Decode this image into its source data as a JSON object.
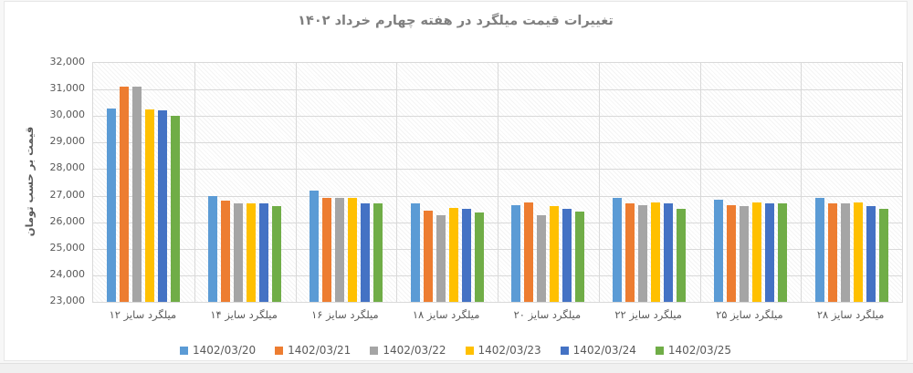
{
  "chart_data": {
    "type": "bar",
    "title": "تغییرات قیمت میلگرد در هفته چهارم خرداد ۱۴۰۲",
    "ylabel": "قیمت بر حسب تومان",
    "xlabel": "",
    "ylim": [
      23000,
      32000
    ],
    "ytick_step": 1000,
    "grid": true,
    "plot_background": "diagonal-hatch",
    "legend_position": "bottom",
    "categories": [
      "میلگرد سایز ۱۲",
      "میلگرد سایز ۱۴",
      "میلگرد سایز ۱۶",
      "میلگرد سایز ۱۸",
      "میلگرد سایز ۲۰",
      "میلگرد سایز ۲۲",
      "میلگرد سایز ۲۵",
      "میلگرد سایز ۲۸"
    ],
    "series": [
      {
        "name": "1402/03/20",
        "color": "#5B9BD5",
        "values": [
          30300,
          27000,
          27200,
          26700,
          26650,
          26900,
          26850,
          26900
        ]
      },
      {
        "name": "1402/03/21",
        "color": "#ED7D31",
        "values": [
          31100,
          26800,
          26900,
          26450,
          26750,
          26700,
          26650,
          26700
        ]
      },
      {
        "name": "1402/03/22",
        "color": "#A5A5A5",
        "values": [
          31100,
          26700,
          26900,
          26250,
          26250,
          26650,
          26600,
          26700
        ]
      },
      {
        "name": "1402/03/23",
        "color": "#FFC000",
        "values": [
          30250,
          26700,
          26900,
          26550,
          26600,
          26750,
          26750,
          26750
        ]
      },
      {
        "name": "1402/03/24",
        "color": "#4472C4",
        "values": [
          30200,
          26700,
          26700,
          26500,
          26500,
          26700,
          26700,
          26600
        ]
      },
      {
        "name": "1402/03/25",
        "color": "#70AD47",
        "values": [
          30000,
          26600,
          26700,
          26350,
          26400,
          26500,
          26700,
          26500
        ]
      }
    ]
  },
  "axis_colors": {
    "gridline": "#d9d9d9",
    "tick_text": "#595959",
    "title_text": "#7f7f7f"
  }
}
